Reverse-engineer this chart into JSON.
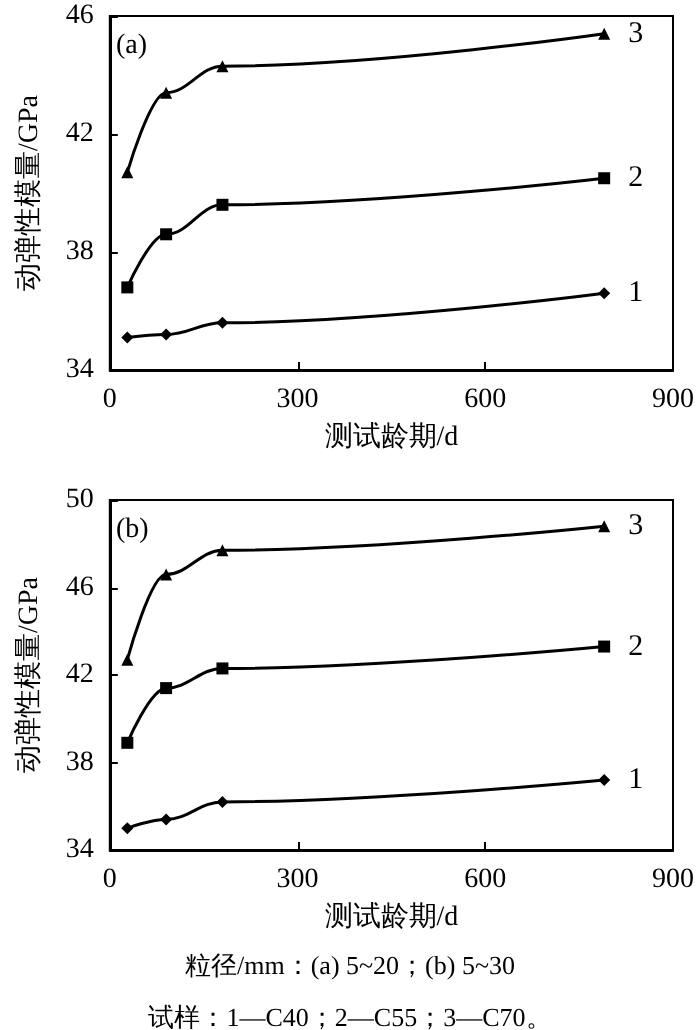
{
  "chart_data": [
    {
      "type": "line",
      "xlabel": "测试龄期/d",
      "ylabel": "动弹性模量/GPa",
      "annotations": [
        "(a)"
      ],
      "x": [
        28,
        90,
        180,
        790
      ],
      "xlim": [
        0,
        900
      ],
      "xticks": [
        0,
        300,
        600,
        900
      ],
      "ylim": [
        34,
        46
      ],
      "yticks": [
        34,
        38,
        42,
        46
      ],
      "grid": false,
      "legend": false,
      "series": [
        {
          "name": "1",
          "color": "#000000",
          "marker": "diamond",
          "values": [
            35.1,
            35.2,
            35.6,
            36.6
          ]
        },
        {
          "name": "2",
          "color": "#000000",
          "marker": "square",
          "values": [
            36.8,
            38.6,
            39.6,
            40.5
          ]
        },
        {
          "name": "3",
          "color": "#000000",
          "marker": "triangle",
          "values": [
            40.7,
            43.4,
            44.3,
            45.4
          ]
        }
      ]
    },
    {
      "type": "line",
      "xlabel": "测试龄期/d",
      "ylabel": "动弹性模量/GPa",
      "annotations": [
        "(b)",
        "粒径/mm：(a) 5~20；(b) 5~30",
        "试样：1—C40；2—C55；3—C70。"
      ],
      "x": [
        28,
        90,
        180,
        790
      ],
      "xlim": [
        0,
        900
      ],
      "xticks": [
        0,
        300,
        600,
        900
      ],
      "ylim": [
        34,
        50
      ],
      "yticks": [
        34,
        38,
        42,
        46,
        50
      ],
      "grid": false,
      "legend": false,
      "series": [
        {
          "name": "1",
          "color": "#000000",
          "marker": "diamond",
          "values": [
            35.0,
            35.4,
            36.2,
            37.2
          ]
        },
        {
          "name": "2",
          "color": "#000000",
          "marker": "square",
          "values": [
            38.9,
            41.4,
            42.3,
            43.3
          ]
        },
        {
          "name": "3",
          "color": "#000000",
          "marker": "triangle",
          "values": [
            42.7,
            46.6,
            47.7,
            48.8
          ]
        }
      ]
    }
  ]
}
